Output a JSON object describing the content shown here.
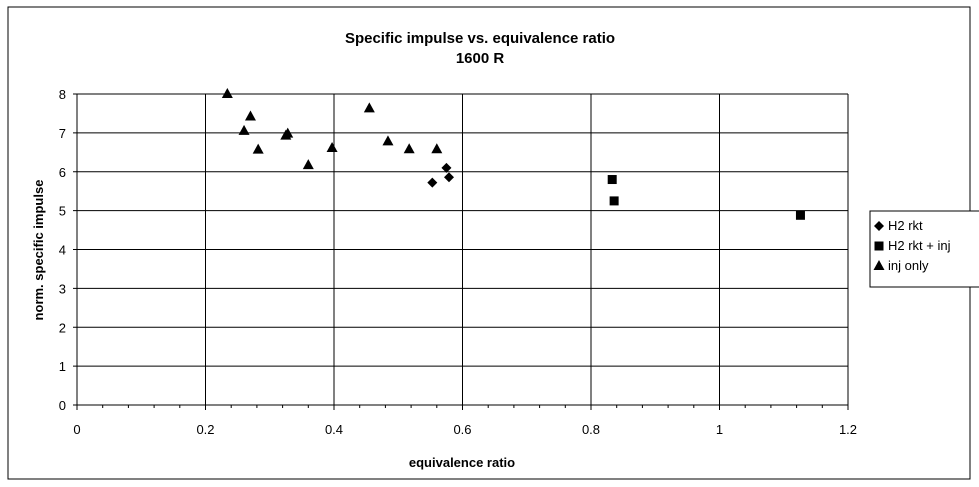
{
  "chart_data": {
    "type": "scatter",
    "title": "Specific impulse vs. equivalence ratio",
    "subtitle": "1600 R",
    "xlabel": "equivalence ratio",
    "ylabel": "norm. specific impulse",
    "xlim": [
      0,
      1.2
    ],
    "ylim": [
      0,
      8
    ],
    "xticks": [
      "0",
      "0.2",
      "0.4",
      "0.6",
      "0.8",
      "1",
      "1.2"
    ],
    "yticks": [
      "0",
      "1",
      "2",
      "3",
      "4",
      "5",
      "6",
      "7",
      "8"
    ],
    "grid": true,
    "legend_position": "right",
    "series": [
      {
        "name": "H2 rkt",
        "marker": "diamond",
        "color": "#000000",
        "points": [
          [
            0.553,
            5.72
          ],
          [
            0.575,
            6.1
          ],
          [
            0.579,
            5.86
          ]
        ]
      },
      {
        "name": "H2 rkt + inj",
        "marker": "square",
        "color": "#000000",
        "points": [
          [
            0.833,
            5.8
          ],
          [
            0.836,
            5.25
          ],
          [
            1.126,
            4.88
          ]
        ]
      },
      {
        "name": "inj only",
        "marker": "triangle",
        "color": "#000000",
        "points": [
          [
            0.234,
            8.0
          ],
          [
            0.26,
            7.05
          ],
          [
            0.27,
            7.42
          ],
          [
            0.282,
            6.57
          ],
          [
            0.325,
            6.93
          ],
          [
            0.328,
            6.98
          ],
          [
            0.36,
            6.17
          ],
          [
            0.397,
            6.61
          ],
          [
            0.455,
            7.63
          ],
          [
            0.484,
            6.78
          ],
          [
            0.517,
            6.58
          ],
          [
            0.56,
            6.58
          ]
        ]
      }
    ]
  }
}
